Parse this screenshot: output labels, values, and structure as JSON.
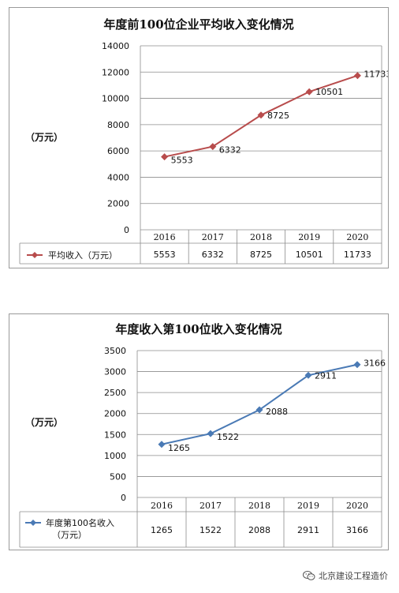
{
  "chart_data": [
    {
      "type": "line",
      "title": "年度前100位企业平均收入变化情况",
      "ylabel": "（万元）",
      "categories": [
        "2016",
        "2017",
        "2018",
        "2019",
        "2020"
      ],
      "ylim": [
        0,
        14000
      ],
      "yticks": [
        0,
        2000,
        4000,
        6000,
        8000,
        10000,
        12000,
        14000
      ],
      "series": [
        {
          "name": "平均收入（万元）",
          "values": [
            5553,
            6332,
            8725,
            10501,
            11733
          ],
          "color": "#b84c4c",
          "marker": "diamond"
        }
      ],
      "grid": true,
      "data_table": true
    },
    {
      "type": "line",
      "title": "年度收入第100位收入变化情况",
      "ylabel": "（万元）",
      "categories": [
        "2016",
        "2017",
        "2018",
        "2019",
        "2020"
      ],
      "ylim": [
        0,
        3500
      ],
      "yticks": [
        0,
        500,
        1000,
        1500,
        2000,
        2500,
        3000,
        3500
      ],
      "series": [
        {
          "name": "年度第100名收入（万元）",
          "values": [
            1265,
            1522,
            2088,
            2911,
            3166
          ],
          "color": "#4a7ab5",
          "marker": "diamond"
        }
      ],
      "grid": true,
      "data_table": true
    }
  ],
  "watermark": {
    "text": "北京建设工程造价"
  }
}
